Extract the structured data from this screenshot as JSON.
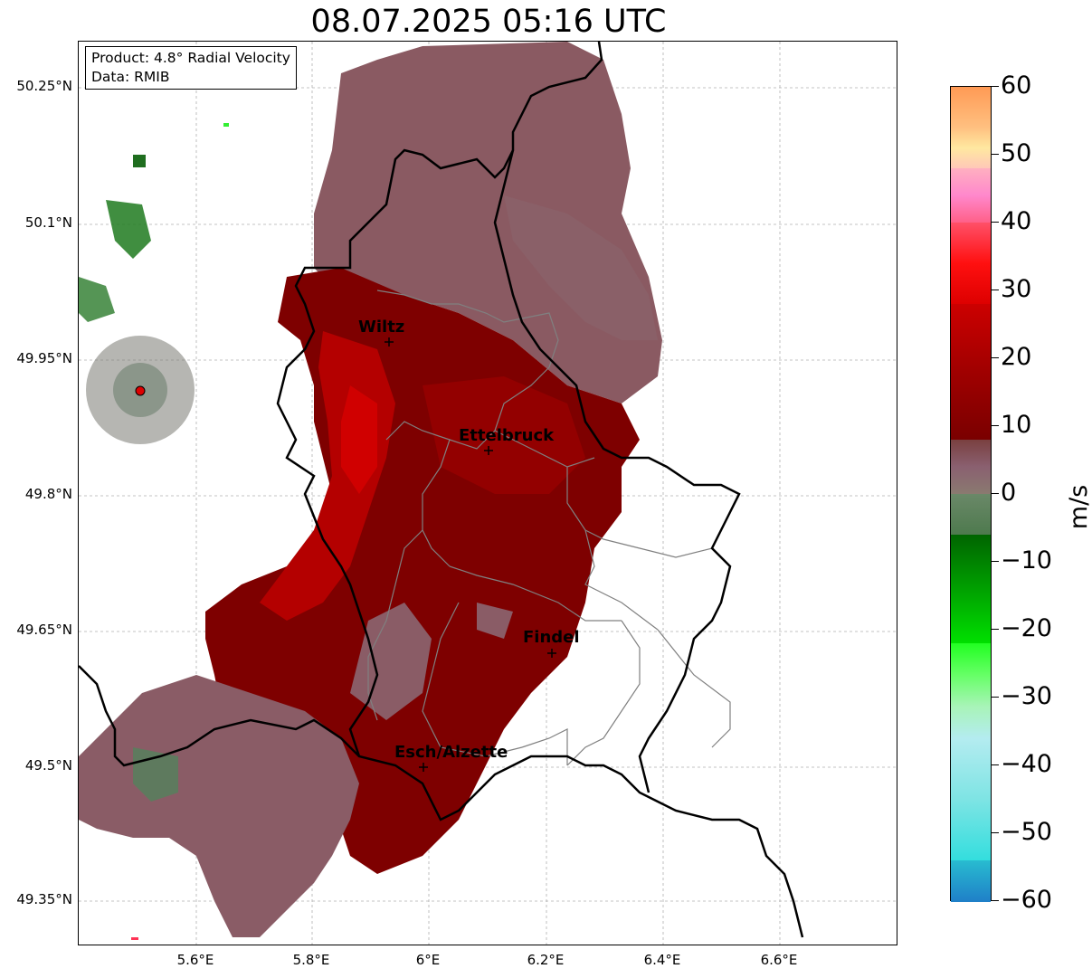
{
  "title": "08.07.2025 05:16 UTC",
  "info": {
    "product_line": "Product: 4.8° Radial Velocity",
    "data_line": "Data: RMIB"
  },
  "lat_labels": [
    "50.25°N",
    "50.1°N",
    "49.95°N",
    "49.8°N",
    "49.65°N",
    "49.5°N",
    "49.35°N"
  ],
  "lon_labels": [
    "5.6°E",
    "5.8°E",
    "6°E",
    "6.2°E",
    "6.4°E",
    "6.6°E"
  ],
  "cities": {
    "wiltz": "Wiltz",
    "ettelbruck": "Ettelbruck",
    "findel": "Findel",
    "esch": "Esch/Alzette"
  },
  "colorbar": {
    "unit": "m/s",
    "ticks": [
      "60",
      "50",
      "40",
      "30",
      "20",
      "10",
      "0",
      "−10",
      "−20",
      "−30",
      "−40",
      "−50",
      "−60"
    ],
    "min": -60,
    "max": 60,
    "colors": {
      "strong_outbound": "#ff9a55",
      "outbound_red": "#ee0000",
      "dark_red": "#7a0000",
      "near_zero": "#8a6f6f",
      "inbound_green": "#00aa00",
      "light_cyan": "#b4ecf0",
      "strong_inbound": "#1f7fc8"
    }
  }
}
